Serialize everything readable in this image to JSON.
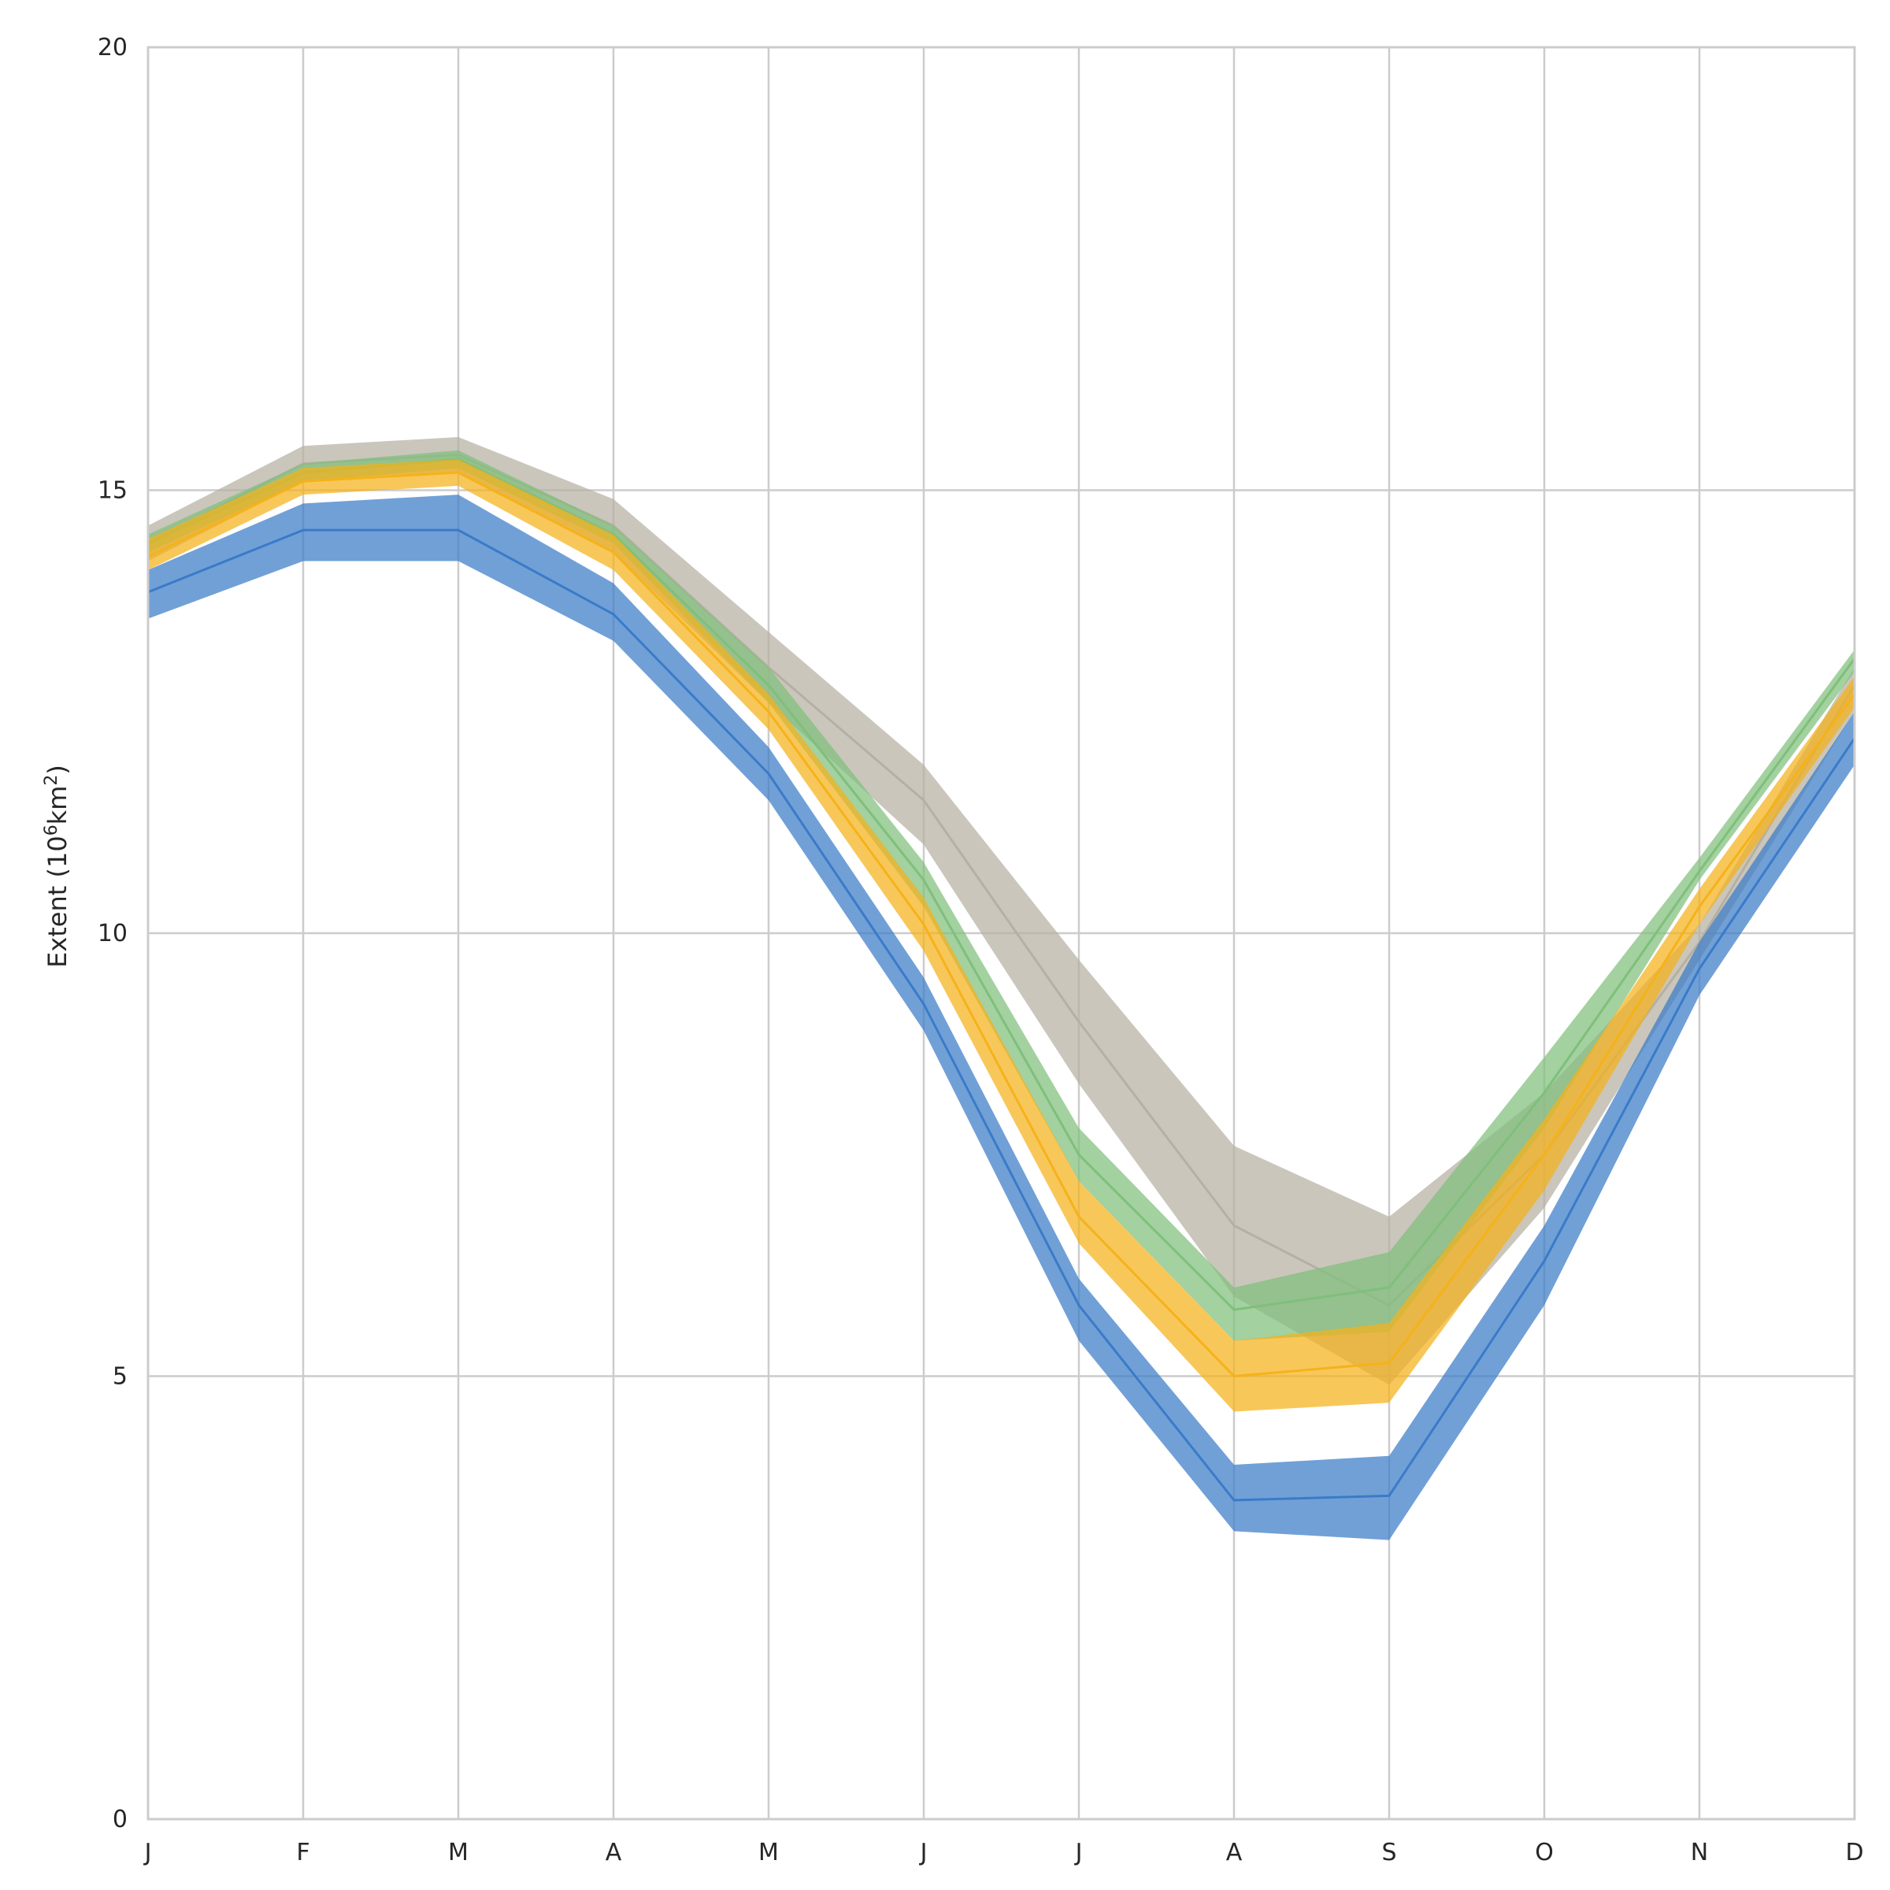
{
  "chart_data": {
    "type": "area",
    "title": "",
    "xlabel": "",
    "ylabel": "Extent (10⁶km²)",
    "ylabel_parts": {
      "prefix": "Extent (10",
      "exp1": "6",
      "mid": "km",
      "exp2": "2",
      "suffix": ")"
    },
    "categories": [
      "J",
      "F",
      "M",
      "A",
      "M",
      "J",
      "J",
      "A",
      "S",
      "O",
      "N",
      "D"
    ],
    "ylim": [
      0,
      20
    ],
    "yticks": [
      "0",
      "5",
      "10",
      "15",
      "20"
    ],
    "grid": true,
    "legend": "none",
    "series": [
      {
        "color": "#b5b0a2",
        "mean": [
          14.4,
          15.3,
          15.4,
          14.6,
          13.0,
          11.5,
          9.0,
          6.7,
          5.8,
          7.5,
          9.9,
          12.8
        ],
        "lower": [
          14.2,
          15.1,
          15.2,
          14.3,
          12.6,
          11.0,
          8.3,
          5.9,
          4.9,
          6.9,
          9.7,
          12.5
        ],
        "upper": [
          14.6,
          15.5,
          15.6,
          14.9,
          13.4,
          11.9,
          9.7,
          7.6,
          6.8,
          8.2,
          10.1,
          13.0
        ]
      },
      {
        "color": "#7fbf7b",
        "mean": [
          14.4,
          15.2,
          15.35,
          14.5,
          12.8,
          10.6,
          7.5,
          5.75,
          6.0,
          8.2,
          10.7,
          13.1
        ],
        "lower": [
          14.3,
          15.1,
          15.25,
          14.4,
          12.6,
          10.3,
          7.2,
          5.4,
          5.5,
          7.8,
          10.6,
          12.95
        ],
        "upper": [
          14.5,
          15.3,
          15.45,
          14.6,
          13.0,
          10.8,
          7.8,
          6.0,
          6.4,
          8.6,
          10.85,
          13.2
        ]
      },
      {
        "color": "#f5b21a",
        "mean": [
          14.25,
          15.1,
          15.2,
          14.3,
          12.5,
          10.1,
          6.8,
          5.0,
          5.15,
          7.5,
          10.3,
          12.7
        ],
        "lower": [
          14.1,
          14.95,
          15.05,
          14.1,
          12.3,
          9.8,
          6.5,
          4.6,
          4.7,
          7.1,
          10.1,
          12.55
        ],
        "upper": [
          14.45,
          15.25,
          15.35,
          14.5,
          12.7,
          10.4,
          7.2,
          5.4,
          5.6,
          7.9,
          10.5,
          12.9
        ]
      },
      {
        "color": "#3a7bc8",
        "mean": [
          13.85,
          14.55,
          14.55,
          13.6,
          11.8,
          9.2,
          5.8,
          3.6,
          3.65,
          6.3,
          9.6,
          12.2
        ],
        "lower": [
          13.55,
          14.2,
          14.2,
          13.3,
          11.5,
          8.9,
          5.4,
          3.25,
          3.15,
          5.8,
          9.3,
          11.9
        ],
        "upper": [
          14.1,
          14.85,
          14.95,
          13.95,
          12.1,
          9.5,
          6.1,
          4.0,
          4.1,
          6.7,
          9.9,
          12.5
        ]
      }
    ]
  }
}
